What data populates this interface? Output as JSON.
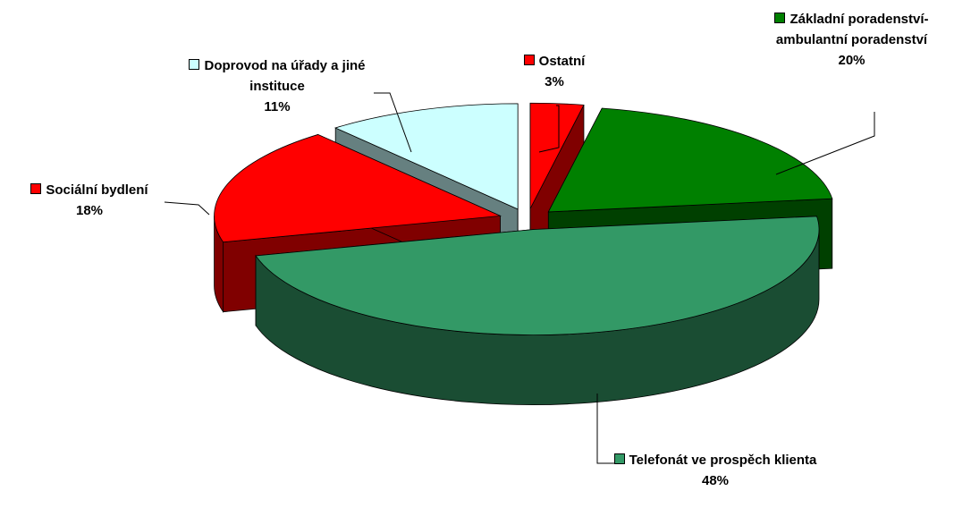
{
  "chart_data": {
    "type": "pie",
    "categories": [
      "Ostatní",
      "Základní poradenství-ambulantní poradenství",
      "Telefonát ve prospěch klienta",
      "Sociální bydlení",
      "Doprovod na úřady a jiné instituce"
    ],
    "values": [
      3,
      20,
      48,
      18,
      11
    ],
    "value_labels": [
      "3%",
      "20%",
      "48%",
      "18%",
      "11%"
    ],
    "colors": [
      "#ff0000",
      "#008000",
      "#339966",
      "#ff0000",
      "#ccffff"
    ]
  }
}
